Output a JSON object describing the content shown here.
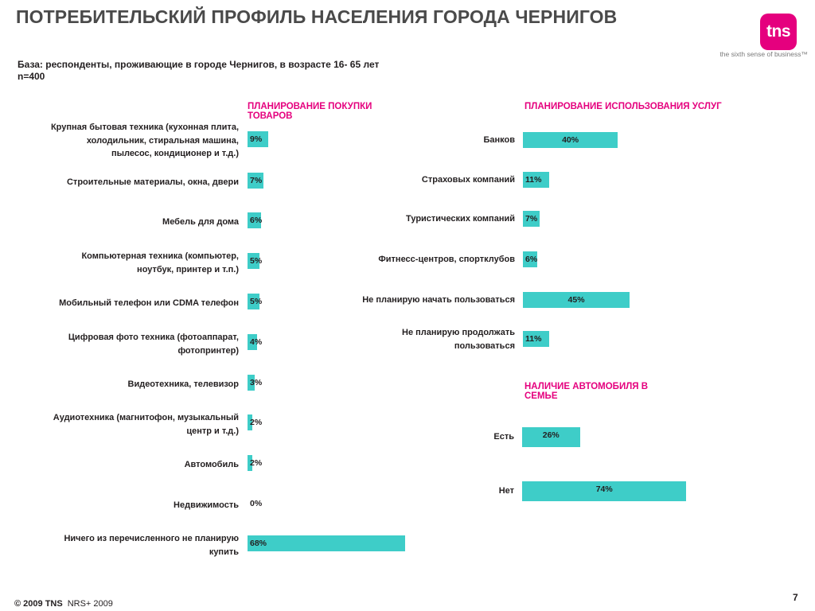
{
  "title": "ПОТРЕБИТЕЛЬСКИЙ ПРОФИЛЬ НАСЕЛЕНИЯ ГОРОДА ЧЕРНИГОВ",
  "logo": {
    "text": "tns",
    "tagline": "the sixth sense of business™",
    "color": "#e5007e"
  },
  "base_line1": "База: респонденты, проживающие в городе Чернигов, в возрасте 16- 65 лет",
  "base_line2": "n=400",
  "colors": {
    "bar": "#3ecdc8",
    "heading": "#e5007e"
  },
  "footer": {
    "copyright": "© 2009 TNS",
    "source": "NRS+ 2009"
  },
  "page_number": "7",
  "chart_data": [
    {
      "type": "bar",
      "orientation": "horizontal",
      "title": "ПЛАНИРОВАНИЕ ПОКУПКИ ТОВАРОВ",
      "categories": [
        "Крупная бытовая техника (кухонная плита, холодильник, стиральная машина, пылесос, кондиционер и т.д.)",
        "Строительные материалы, окна, двери",
        "Мебель для дома",
        "Компьютерная техника (компьютер, ноутбук, принтер и т.п.)",
        "Мобильный телефон или CDMA телефон",
        "Цифровая фото техника (фотоаппарат, фотопринтер)",
        "Видеотехника, телевизор",
        "Аудиотехника (магнитофон, музыкальный центр и т.д.)",
        "Автомобиль",
        "Недвижимость",
        "Ничего из перечисленного не планирую купить"
      ],
      "values": [
        9,
        7,
        6,
        5,
        5,
        4,
        3,
        2,
        2,
        0,
        68
      ],
      "value_labels": [
        "9%",
        "7%",
        "6%",
        "5%",
        "5%",
        "4%",
        "3%",
        "2%",
        "2%",
        "0%",
        "68%"
      ],
      "xlim": [
        0,
        100
      ]
    },
    {
      "type": "bar",
      "orientation": "horizontal",
      "title": "ПЛАНИРОВАНИЕ ИСПОЛЬЗОВАНИЯ УСЛУГ",
      "categories": [
        "Банков",
        "Страховых компаний",
        "Туристических компаний",
        "Фитнесс-центров, спортклубов",
        "Не планирую начать пользоваться",
        "Не планирую продолжать пользоваться"
      ],
      "values": [
        40,
        11,
        7,
        6,
        45,
        11
      ],
      "value_labels": [
        "40%",
        "11%",
        "7%",
        "6%",
        "45%",
        "11%"
      ],
      "xlim": [
        0,
        100
      ]
    },
    {
      "type": "bar",
      "orientation": "horizontal",
      "title": "НАЛИЧИЕ АВТОМОБИЛЯ В СЕМЬЕ",
      "categories": [
        "Есть",
        "Нет"
      ],
      "values": [
        26,
        74
      ],
      "value_labels": [
        "26%",
        "74%"
      ],
      "xlim": [
        0,
        100
      ]
    }
  ]
}
